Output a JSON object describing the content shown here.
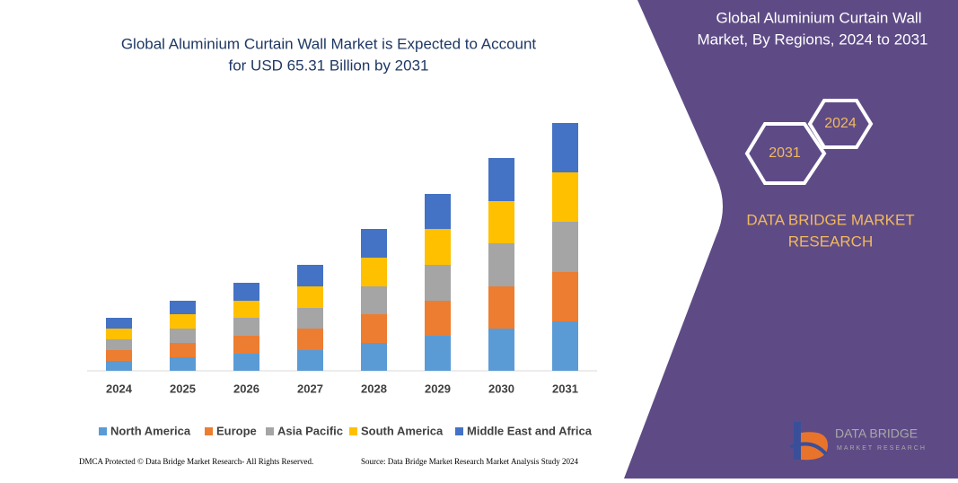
{
  "chart_data": {
    "type": "stacked_bar",
    "title": [
      "Global Aluminium Curtain Wall Market is Expected to Account",
      "for USD 65.31 Billion by 2031"
    ],
    "categories": [
      "2024",
      "2025",
      "2026",
      "2027",
      "2028",
      "2029",
      "2030",
      "2031"
    ],
    "series": [
      {
        "name": "North America",
        "color": "#5b9bd5",
        "values": [
          11,
          15,
          19,
          23,
          31,
          39,
          47,
          55
        ]
      },
      {
        "name": "Europe",
        "color": "#ed7d31",
        "values": [
          12,
          16,
          20,
          24,
          32,
          39,
          47,
          55
        ]
      },
      {
        "name": "Asia Pacific",
        "color": "#a5a5a5",
        "values": [
          12,
          16,
          20,
          23,
          31,
          40,
          48,
          56
        ]
      },
      {
        "name": "South America",
        "color": "#ffc000",
        "values": [
          12,
          16,
          19,
          24,
          32,
          40,
          47,
          55
        ]
      },
      {
        "name": "Middle East and Africa",
        "color": "#4472c4",
        "values": [
          12,
          15,
          20,
          24,
          32,
          39,
          48,
          55
        ]
      }
    ]
  },
  "side_panel": {
    "title": [
      "Global Aluminium Curtain Wall",
      "Market, By Regions, 2024 to 2031"
    ],
    "hexagons": [
      "2024",
      "2031"
    ],
    "brand": [
      "DATA BRIDGE MARKET",
      "RESEARCH"
    ],
    "logo": [
      "DATA BRIDGE",
      "MARKET RESEARCH"
    ]
  },
  "footer": {
    "left": "DMCA Protected © Data Bridge Market Research- All Rights Reserved.",
    "right": "Source: Data Bridge Market Research Market Analysis Study 2024"
  }
}
